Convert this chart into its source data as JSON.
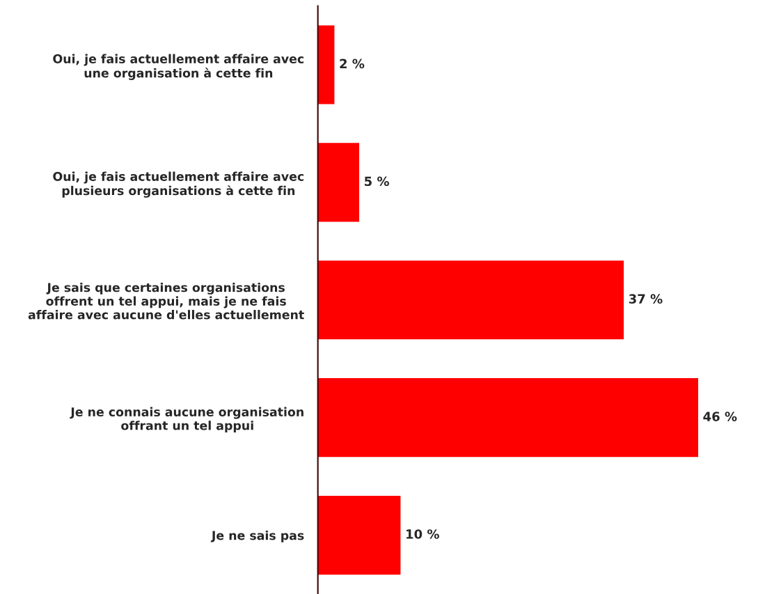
{
  "chart_data": {
    "type": "bar",
    "orientation": "horizontal",
    "categories": [
      "Oui, je fais actuellement affaire avec\nune organisation à cette fin",
      "Oui, je fais actuellement affaire avec\nplusieurs organisations à cette fin",
      "Je sais que certaines organisations\noffrent un tel appui, mais je ne fais\naffaire avec aucune d'elles actuellement",
      "Je ne connais aucune organisation\noffrant un tel appui",
      "Je ne sais pas"
    ],
    "values": [
      2,
      5,
      37,
      46,
      10
    ],
    "value_labels": [
      "2 %",
      "5 %",
      "37 %",
      "46 %",
      "10 %"
    ],
    "color": "#ff0000",
    "grid": false,
    "legend": false
  }
}
